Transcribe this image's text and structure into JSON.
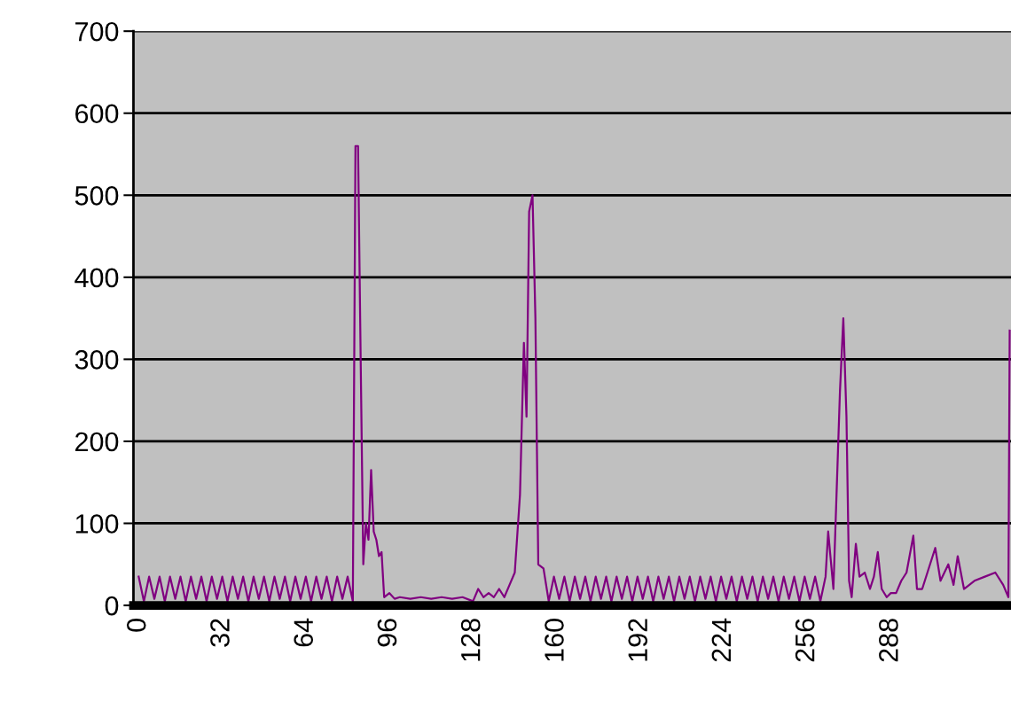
{
  "chart_data": {
    "type": "line",
    "x": [
      0,
      2,
      4,
      6,
      8,
      10,
      12,
      14,
      16,
      18,
      20,
      22,
      24,
      26,
      28,
      30,
      32,
      34,
      36,
      38,
      40,
      42,
      44,
      46,
      48,
      50,
      52,
      54,
      56,
      58,
      60,
      62,
      64,
      66,
      68,
      70,
      72,
      74,
      76,
      78,
      80,
      82,
      83,
      84,
      85,
      86,
      87,
      88,
      89,
      90,
      91,
      92,
      93,
      94,
      96,
      98,
      100,
      104,
      108,
      112,
      116,
      120,
      124,
      128,
      130,
      132,
      134,
      136,
      138,
      140,
      142,
      144,
      146,
      147.5,
      148.5,
      149.5,
      150.8,
      151.9,
      153,
      155,
      157,
      159,
      161,
      163,
      165,
      167,
      169,
      171,
      173,
      175,
      177,
      179,
      181,
      183,
      185,
      187,
      189,
      191,
      193,
      195,
      197,
      199,
      201,
      203,
      205,
      207,
      209,
      211,
      213,
      215,
      217,
      219,
      221,
      223,
      225,
      227,
      229,
      231,
      233,
      235,
      237,
      239,
      241,
      243,
      245,
      247,
      249,
      251,
      253,
      255,
      257,
      259,
      261,
      263,
      264,
      266,
      268.5,
      269.8,
      271,
      272,
      273,
      274.6,
      276,
      278,
      280,
      281.5,
      283,
      284.5,
      286.4,
      288,
      290,
      292,
      294,
      296.6,
      298,
      300,
      302,
      305,
      307,
      310,
      312,
      313.6,
      316,
      320,
      324,
      328,
      331,
      333,
      333.5
    ],
    "series": [
      {
        "color": "#800080",
        "values": [
          35,
          5,
          35,
          8,
          35,
          5,
          35,
          8,
          35,
          5,
          35,
          8,
          35,
          5,
          35,
          8,
          35,
          5,
          35,
          8,
          35,
          5,
          35,
          8,
          35,
          5,
          35,
          8,
          35,
          5,
          35,
          8,
          35,
          5,
          35,
          8,
          35,
          5,
          35,
          8,
          35,
          5,
          560,
          560,
          300,
          50,
          100,
          80,
          165,
          90,
          80,
          60,
          65,
          10,
          15,
          8,
          10,
          8,
          10,
          8,
          10,
          8,
          10,
          5,
          20,
          10,
          15,
          10,
          20,
          10,
          25,
          40,
          135,
          320,
          230,
          480,
          500,
          350,
          50,
          45,
          5,
          35,
          8,
          35,
          5,
          35,
          8,
          35,
          5,
          35,
          8,
          35,
          5,
          35,
          8,
          35,
          5,
          35,
          8,
          35,
          5,
          35,
          8,
          35,
          5,
          35,
          8,
          35,
          5,
          35,
          8,
          35,
          5,
          35,
          8,
          35,
          5,
          35,
          8,
          35,
          5,
          35,
          8,
          35,
          5,
          35,
          8,
          35,
          5,
          35,
          8,
          35,
          5,
          35,
          90,
          20,
          260,
          350,
          230,
          30,
          10,
          75,
          35,
          40,
          20,
          35,
          65,
          20,
          10,
          15,
          15,
          30,
          40,
          85,
          20,
          20,
          40,
          70,
          30,
          50,
          25,
          60,
          20,
          30,
          35,
          40,
          25,
          10,
          335
        ]
      }
    ],
    "xlim": [
      -2,
      334
    ],
    "xticks": [
      0,
      32,
      64,
      96,
      128,
      160,
      192,
      224,
      256,
      288
    ],
    "ylim": [
      0,
      700
    ],
    "yticks": [
      0,
      100,
      200,
      300,
      400,
      500,
      600,
      700
    ],
    "grid": "y",
    "legend": false,
    "marker": "none",
    "line_style": "solid"
  }
}
